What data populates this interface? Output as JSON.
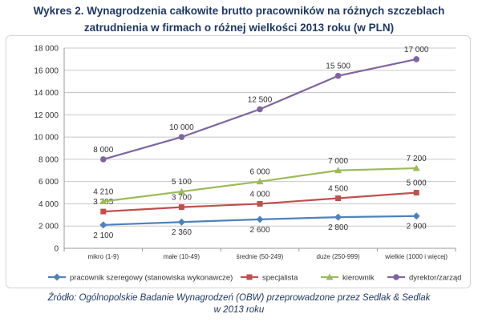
{
  "title_line1": "Wykres 2. Wynagrodzenia całkowite brutto pracowników na różnych szczeblach",
  "title_line2": "zatrudnienia w firmach o różnej wielkości 2013 roku (w PLN)",
  "source_line1": "Źródło: Ogólnopolskie Badanie Wynagrodzeń (OBW) przeprowadzone przez Sedlak & Sedlak",
  "source_line2": "w 2013 roku",
  "chart_data": {
    "type": "line",
    "title": "Wykres 2. Wynagrodzenia całkowite brutto pracowników na różnych szczeblach zatrudnienia w firmach o różnej wielkości 2013 roku (w PLN)",
    "categories": [
      "mikro (1-9)",
      "małe (10-49)",
      "średnie (50-249)",
      "duże (250-999)",
      "wielkie (1000 i więcej)"
    ],
    "y_ticks": [
      "0",
      "2 000",
      "4 000",
      "6 000",
      "8 000",
      "10 000",
      "12 000",
      "14 000",
      "16 000",
      "18 000"
    ],
    "ylim": [
      0,
      18000
    ],
    "grid": true,
    "legend_position": "bottom",
    "series": [
      {
        "name": "pracownik szeregowy (stanowiska wykonawcze)",
        "color": "#4f81bd",
        "marker": "diamond",
        "values": [
          2100,
          2360,
          2600,
          2800,
          2900
        ],
        "labels": [
          "2 100",
          "2 360",
          "2 600",
          "2 800",
          "2 900"
        ],
        "label_position": "below"
      },
      {
        "name": "specjalista",
        "color": "#c0504d",
        "marker": "square",
        "values": [
          3305,
          3700,
          4000,
          4500,
          5000
        ],
        "labels": [
          "3 305",
          "3 700",
          "4 000",
          "4 500",
          "5 000"
        ],
        "label_position": "above"
      },
      {
        "name": "kierownik",
        "color": "#9bbb59",
        "marker": "triangle",
        "values": [
          4210,
          5100,
          6000,
          7000,
          7200
        ],
        "labels": [
          "4 210",
          "5 100",
          "6 000",
          "7 000",
          "7 200"
        ],
        "label_position": "above"
      },
      {
        "name": "dyrektor/zarząd",
        "color": "#8064a2",
        "marker": "circle",
        "values": [
          8000,
          10000,
          12500,
          15500,
          17000
        ],
        "labels": [
          "8 000",
          "10 000",
          "12 500",
          "15 500",
          "17 000"
        ],
        "label_position": "above"
      }
    ]
  }
}
